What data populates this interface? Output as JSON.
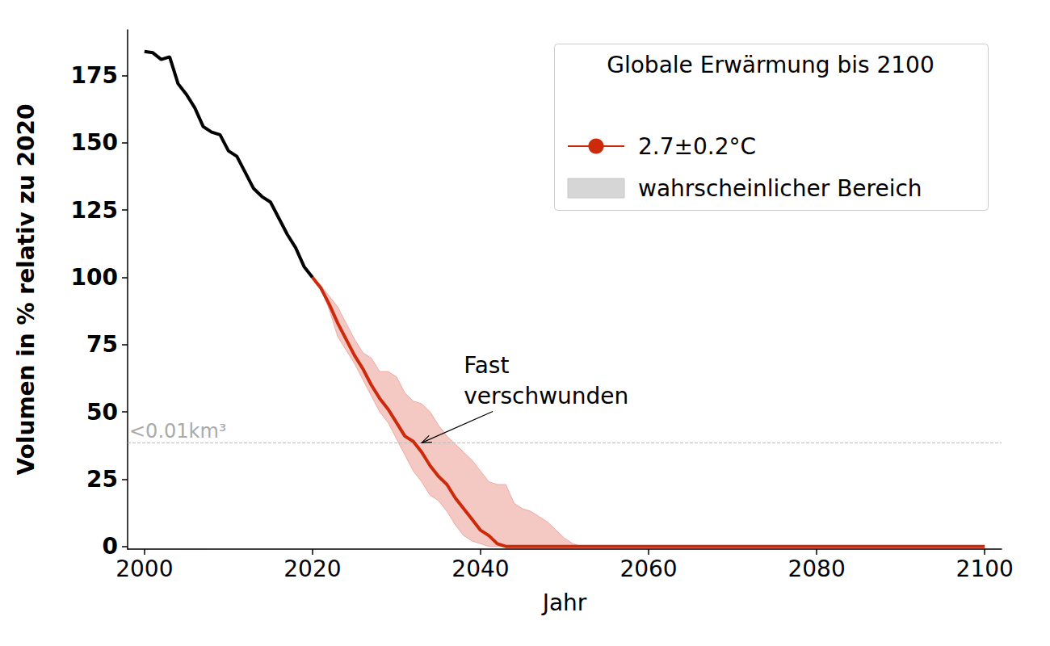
{
  "chart_data": {
    "type": "line",
    "x_label": "Jahr",
    "y_label": "Volumen in % relativ zu 2020",
    "xlim": [
      1998,
      2102
    ],
    "ylim": [
      -1,
      192
    ],
    "xticks": [
      2000,
      2020,
      2040,
      2060,
      2080,
      2100
    ],
    "yticks": [
      0,
      25,
      50,
      75,
      100,
      125,
      150,
      175
    ],
    "grid": false,
    "legend": "upper right",
    "legend_title": "Globale Erwärmung bis 2100",
    "series": [
      {
        "color": "#000000",
        "x": [
          2000,
          2001,
          2002,
          2003,
          2004,
          2005,
          2006,
          2007,
          2008,
          2009,
          2010,
          2011,
          2012,
          2013,
          2014,
          2015,
          2016,
          2017,
          2018,
          2019,
          2020
        ],
        "values": [
          184,
          183.5,
          181,
          182,
          172,
          168,
          163,
          156,
          154,
          153,
          147,
          145,
          139,
          133,
          130,
          128,
          122,
          116,
          111,
          104,
          100
        ]
      },
      {
        "name": "2.7±0.2°C",
        "color": "#cc2a0b",
        "x": [
          2020,
          2021,
          2022,
          2023,
          2024,
          2025,
          2026,
          2027,
          2028,
          2029,
          2030,
          2031,
          2032,
          2033,
          2034,
          2035,
          2036,
          2037,
          2038,
          2039,
          2040,
          2041,
          2042,
          2043,
          2044,
          2050,
          2100
        ],
        "values": [
          100,
          96,
          90,
          83,
          77,
          71,
          66,
          60,
          55,
          51,
          46,
          41,
          39,
          35,
          30,
          26,
          23,
          18,
          14,
          10,
          6,
          4,
          1,
          0,
          0,
          0,
          0
        ]
      }
    ],
    "band": {
      "name": "wahrscheinlicher Bereich",
      "color": "#f5c9c3",
      "x": [
        2020,
        2021,
        2022,
        2023,
        2024,
        2025,
        2026,
        2027,
        2028,
        2029,
        2030,
        2031,
        2032,
        2033,
        2034,
        2035,
        2036,
        2037,
        2038,
        2039,
        2040,
        2041,
        2042,
        2043,
        2044,
        2045,
        2046,
        2047,
        2048,
        2049,
        2050,
        2051,
        2052
      ],
      "lower": [
        100,
        96,
        88,
        78,
        73,
        68,
        62,
        56,
        50,
        46,
        40,
        34,
        28,
        24,
        19,
        17,
        13,
        8,
        4,
        2,
        1,
        0,
        0,
        0,
        0,
        0,
        0,
        0,
        0,
        0,
        0,
        0,
        0
      ],
      "upper": [
        100,
        97,
        93,
        89,
        83,
        77,
        72,
        70,
        65,
        65,
        63,
        57,
        54,
        53,
        50,
        45,
        41,
        38,
        35,
        32,
        28,
        24,
        23,
        23,
        16,
        14,
        13,
        11,
        9,
        6,
        3,
        1,
        0
      ]
    },
    "hline": {
      "y": 38.5,
      "label": "<0.01km³"
    },
    "annotation": {
      "text": "Fast\nverschwunden",
      "x": 2033,
      "y": 38.5,
      "text_x": 2038,
      "text_y": 73
    }
  }
}
